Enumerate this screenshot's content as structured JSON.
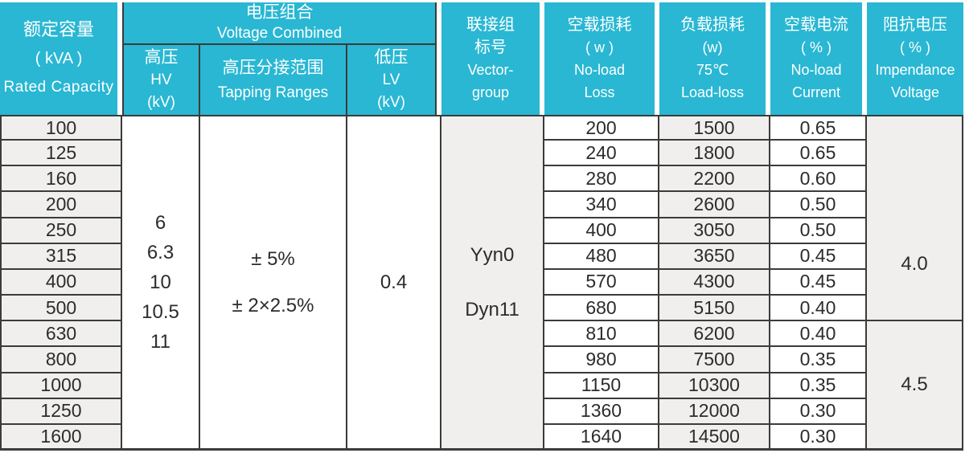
{
  "colors": {
    "header_bg": "#29b7d3",
    "cell_gray": "#f0efed",
    "border": "#3b3b3b",
    "text": "#2c2c2c"
  },
  "header": {
    "rated_capacity": {
      "zh": "额定容量",
      "unit": "( kVA )",
      "en": "Rated Capacity"
    },
    "voltage_combined": {
      "zh": "电压组合",
      "en": "Voltage Combined"
    },
    "hv": {
      "zh": "高压",
      "en": "HV",
      "unit": "(kV)"
    },
    "tapping": {
      "zh": "高压分接范围",
      "en": "Tapping Ranges"
    },
    "lv": {
      "zh": "低压",
      "en": "LV",
      "unit": "(kV)"
    },
    "vector": {
      "zh_line1": "联接组",
      "zh_line2": "标号",
      "en_line1": "Vector-",
      "en_line2": "group"
    },
    "noload_loss": {
      "zh": "空载损耗",
      "unit": "( w )",
      "en_line1": "No-load",
      "en_line2": "Loss"
    },
    "load_loss": {
      "zh": "负载损耗",
      "unit": "(w)",
      "temp": "75℃",
      "en": "Load-loss"
    },
    "noload_current": {
      "zh": "空载电流",
      "unit": "( % )",
      "en_line1": "No-load",
      "en_line2": "Current"
    },
    "impedance": {
      "zh": "阻抗电压",
      "unit": "( % )",
      "en_line1": "Impendance",
      "en_line2": "Voltage"
    }
  },
  "voltage": {
    "hv_values": [
      "6",
      "6.3",
      "10",
      "10.5",
      "11"
    ],
    "tapping_values": [
      "± 5%",
      "± 2×2.5%"
    ],
    "lv_value": "0.4"
  },
  "vector_values": [
    "Yyn0",
    "Dyn11"
  ],
  "impedance_values": [
    "4.0",
    "4.5"
  ],
  "rows": [
    {
      "capacity": "100",
      "noload_loss": "200",
      "load_loss": "1500",
      "noload_current": "0.65"
    },
    {
      "capacity": "125",
      "noload_loss": "240",
      "load_loss": "1800",
      "noload_current": "0.65"
    },
    {
      "capacity": "160",
      "noload_loss": "280",
      "load_loss": "2200",
      "noload_current": "0.60"
    },
    {
      "capacity": "200",
      "noload_loss": "340",
      "load_loss": "2600",
      "noload_current": "0.50"
    },
    {
      "capacity": "250",
      "noload_loss": "400",
      "load_loss": "3050",
      "noload_current": "0.50"
    },
    {
      "capacity": "315",
      "noload_loss": "480",
      "load_loss": "3650",
      "noload_current": "0.45"
    },
    {
      "capacity": "400",
      "noload_loss": "570",
      "load_loss": "4300",
      "noload_current": "0.45"
    },
    {
      "capacity": "500",
      "noload_loss": "680",
      "load_loss": "5150",
      "noload_current": "0.40"
    },
    {
      "capacity": "630",
      "noload_loss": "810",
      "load_loss": "6200",
      "noload_current": "0.40"
    },
    {
      "capacity": "800",
      "noload_loss": "980",
      "load_loss": "7500",
      "noload_current": "0.35"
    },
    {
      "capacity": "1000",
      "noload_loss": "1150",
      "load_loss": "10300",
      "noload_current": "0.35"
    },
    {
      "capacity": "1250",
      "noload_loss": "1360",
      "load_loss": "12000",
      "noload_current": "0.30"
    },
    {
      "capacity": "1600",
      "noload_loss": "1640",
      "load_loss": "14500",
      "noload_current": "0.30"
    }
  ]
}
